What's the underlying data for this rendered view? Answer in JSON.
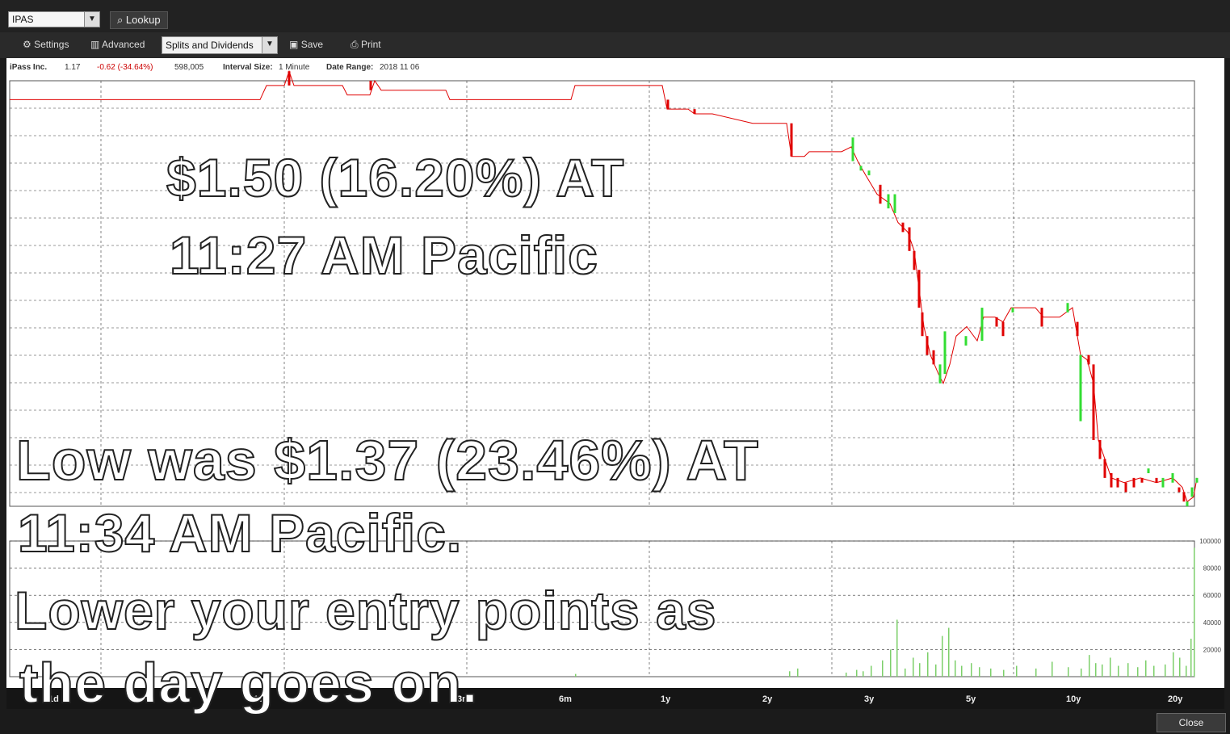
{
  "toolbar": {
    "symbol_value": "IPAS",
    "lookup_label": "Lookup",
    "settings_label": "Settings",
    "advanced_label": "Advanced",
    "splits_select_value": "Splits and Dividends",
    "save_label": "Save",
    "print_label": "Print"
  },
  "info_bar": {
    "company": "iPass Inc.",
    "last": "1.17",
    "change": "-0.62 (-34.64%)",
    "volume": "598,005",
    "interval_label": "Interval Size:",
    "interval_value": "1 Minute",
    "date_label": "Date Range:",
    "date_value": "2018 11 06"
  },
  "timeframes": [
    "1d",
    "10d",
    "3m",
    "6m",
    "1y",
    "2y",
    "3y",
    "5y",
    "10y",
    "20y"
  ],
  "close_label": "Close",
  "overlay": {
    "line1": "$1.50 (16.20%) AT",
    "line2": "11:27 AM Pacific",
    "line3": "Low was $1.37 (23.46%) AT",
    "line4": "11:34 AM Pacific.",
    "line5": "Lower your entry points as",
    "line6": "the day goes on."
  },
  "colors": {
    "up": "#33dd33",
    "down": "#e00000",
    "volume": "#7ccf6a",
    "grid": "#333333"
  },
  "chart_data": {
    "type": "candlestick",
    "price_ylim": [
      1.37,
      1.82
    ],
    "volume_ylim": [
      0,
      100000
    ],
    "y_tick_labels": [
      "20000",
      "40000",
      "60000",
      "80000",
      "100000"
    ],
    "price_path": [
      [
        0,
        1.8
      ],
      [
        310,
        1.8
      ],
      [
        318,
        1.815
      ],
      [
        340,
        1.815
      ],
      [
        346,
        1.83
      ],
      [
        352,
        1.815
      ],
      [
        412,
        1.815
      ],
      [
        418,
        1.805
      ],
      [
        446,
        1.805
      ],
      [
        452,
        1.82
      ],
      [
        460,
        1.81
      ],
      [
        540,
        1.81
      ],
      [
        545,
        1.8
      ],
      [
        695,
        1.8
      ],
      [
        700,
        1.815
      ],
      [
        808,
        1.815
      ],
      [
        814,
        1.79
      ],
      [
        840,
        1.79
      ],
      [
        848,
        1.785
      ],
      [
        870,
        1.785
      ],
      [
        920,
        1.775
      ],
      [
        962,
        1.775
      ],
      [
        968,
        1.74
      ],
      [
        984,
        1.74
      ],
      [
        990,
        1.745
      ],
      [
        1030,
        1.745
      ],
      [
        1042,
        1.75
      ],
      [
        1050,
        1.735
      ],
      [
        1060,
        1.72
      ],
      [
        1074,
        1.7
      ],
      [
        1090,
        1.69
      ],
      [
        1100,
        1.67
      ],
      [
        1112,
        1.66
      ],
      [
        1120,
        1.64
      ],
      [
        1126,
        1.6
      ],
      [
        1132,
        1.56
      ],
      [
        1140,
        1.53
      ],
      [
        1150,
        1.51
      ],
      [
        1156,
        1.5
      ],
      [
        1164,
        1.52
      ],
      [
        1172,
        1.55
      ],
      [
        1185,
        1.56
      ],
      [
        1198,
        1.545
      ],
      [
        1206,
        1.57
      ],
      [
        1220,
        1.57
      ],
      [
        1230,
        1.565
      ],
      [
        1240,
        1.58
      ],
      [
        1270,
        1.58
      ],
      [
        1280,
        1.57
      ],
      [
        1300,
        1.57
      ],
      [
        1316,
        1.58
      ],
      [
        1320,
        1.56
      ],
      [
        1326,
        1.53
      ],
      [
        1334,
        1.525
      ],
      [
        1342,
        1.5
      ],
      [
        1348,
        1.44
      ],
      [
        1356,
        1.42
      ],
      [
        1364,
        1.4
      ],
      [
        1380,
        1.395
      ],
      [
        1400,
        1.4
      ],
      [
        1420,
        1.395
      ],
      [
        1440,
        1.4
      ],
      [
        1452,
        1.39
      ],
      [
        1458,
        1.375
      ],
      [
        1466,
        1.38
      ],
      [
        1470,
        1.4
      ]
    ],
    "candles": [
      {
        "x": 346,
        "o": 1.83,
        "c": 1.815,
        "up": false
      },
      {
        "x": 447,
        "o": 1.82,
        "c": 1.81,
        "up": false
      },
      {
        "x": 815,
        "o": 1.8,
        "c": 1.79,
        "up": false
      },
      {
        "x": 848,
        "o": 1.79,
        "c": 1.785,
        "up": false
      },
      {
        "x": 968,
        "o": 1.775,
        "c": 1.74,
        "up": false
      },
      {
        "x": 1044,
        "o": 1.735,
        "c": 1.76,
        "up": true
      },
      {
        "x": 1054,
        "o": 1.73,
        "c": 1.725,
        "up": true
      },
      {
        "x": 1064,
        "o": 1.725,
        "c": 1.72,
        "up": true
      },
      {
        "x": 1078,
        "o": 1.71,
        "c": 1.69,
        "up": false
      },
      {
        "x": 1088,
        "o": 1.7,
        "c": 1.685,
        "up": true
      },
      {
        "x": 1096,
        "o": 1.68,
        "c": 1.7,
        "up": true
      },
      {
        "x": 1106,
        "o": 1.67,
        "c": 1.66,
        "up": false
      },
      {
        "x": 1114,
        "o": 1.665,
        "c": 1.64,
        "up": false
      },
      {
        "x": 1120,
        "o": 1.64,
        "c": 1.62,
        "up": false
      },
      {
        "x": 1126,
        "o": 1.62,
        "c": 1.58,
        "up": false
      },
      {
        "x": 1130,
        "o": 1.575,
        "c": 1.55,
        "up": false
      },
      {
        "x": 1136,
        "o": 1.55,
        "c": 1.53,
        "up": false
      },
      {
        "x": 1144,
        "o": 1.535,
        "c": 1.52,
        "up": false
      },
      {
        "x": 1152,
        "o": 1.52,
        "c": 1.5,
        "up": true
      },
      {
        "x": 1158,
        "o": 1.51,
        "c": 1.555,
        "up": true
      },
      {
        "x": 1184,
        "o": 1.54,
        "c": 1.55,
        "up": true
      },
      {
        "x": 1204,
        "o": 1.545,
        "c": 1.58,
        "up": true
      },
      {
        "x": 1222,
        "o": 1.57,
        "c": 1.56,
        "up": false
      },
      {
        "x": 1230,
        "o": 1.565,
        "c": 1.55,
        "up": false
      },
      {
        "x": 1242,
        "o": 1.575,
        "c": 1.58,
        "up": true
      },
      {
        "x": 1278,
        "o": 1.58,
        "c": 1.56,
        "up": false
      },
      {
        "x": 1310,
        "o": 1.575,
        "c": 1.585,
        "up": true
      },
      {
        "x": 1322,
        "o": 1.565,
        "c": 1.55,
        "up": false
      },
      {
        "x": 1326,
        "o": 1.53,
        "c": 1.46,
        "up": true
      },
      {
        "x": 1336,
        "o": 1.53,
        "c": 1.52,
        "up": false
      },
      {
        "x": 1342,
        "o": 1.52,
        "c": 1.44,
        "up": false
      },
      {
        "x": 1350,
        "o": 1.44,
        "c": 1.42,
        "up": false
      },
      {
        "x": 1356,
        "o": 1.42,
        "c": 1.4,
        "up": false
      },
      {
        "x": 1364,
        "o": 1.405,
        "c": 1.39,
        "up": false
      },
      {
        "x": 1372,
        "o": 1.4,
        "c": 1.39,
        "up": false
      },
      {
        "x": 1382,
        "o": 1.395,
        "c": 1.385,
        "up": false
      },
      {
        "x": 1392,
        "o": 1.4,
        "c": 1.39,
        "up": false
      },
      {
        "x": 1402,
        "o": 1.395,
        "c": 1.4,
        "up": false
      },
      {
        "x": 1410,
        "o": 1.405,
        "c": 1.41,
        "up": true
      },
      {
        "x": 1420,
        "o": 1.4,
        "c": 1.395,
        "up": false
      },
      {
        "x": 1428,
        "o": 1.4,
        "c": 1.39,
        "up": true
      },
      {
        "x": 1440,
        "o": 1.395,
        "c": 1.405,
        "up": true
      },
      {
        "x": 1448,
        "o": 1.39,
        "c": 1.385,
        "up": false
      },
      {
        "x": 1454,
        "o": 1.385,
        "c": 1.375,
        "up": false
      },
      {
        "x": 1458,
        "o": 1.375,
        "c": 1.37,
        "up": true
      },
      {
        "x": 1464,
        "o": 1.38,
        "c": 1.39,
        "up": true
      },
      {
        "x": 1470,
        "o": 1.395,
        "c": 1.4,
        "up": true
      }
    ],
    "volume_bars": [
      {
        "x": 700,
        "v": 2000
      },
      {
        "x": 965,
        "v": 4000
      },
      {
        "x": 975,
        "v": 6000
      },
      {
        "x": 1035,
        "v": 3000
      },
      {
        "x": 1048,
        "v": 5000
      },
      {
        "x": 1056,
        "v": 4000
      },
      {
        "x": 1066,
        "v": 8000
      },
      {
        "x": 1080,
        "v": 12000
      },
      {
        "x": 1090,
        "v": 20000
      },
      {
        "x": 1098,
        "v": 42000
      },
      {
        "x": 1108,
        "v": 6000
      },
      {
        "x": 1118,
        "v": 14000
      },
      {
        "x": 1126,
        "v": 10000
      },
      {
        "x": 1136,
        "v": 18000
      },
      {
        "x": 1146,
        "v": 9000
      },
      {
        "x": 1154,
        "v": 30000
      },
      {
        "x": 1162,
        "v": 36000
      },
      {
        "x": 1170,
        "v": 12000
      },
      {
        "x": 1178,
        "v": 8000
      },
      {
        "x": 1190,
        "v": 10000
      },
      {
        "x": 1200,
        "v": 7000
      },
      {
        "x": 1214,
        "v": 6000
      },
      {
        "x": 1230,
        "v": 5000
      },
      {
        "x": 1246,
        "v": 8000
      },
      {
        "x": 1270,
        "v": 6000
      },
      {
        "x": 1290,
        "v": 11000
      },
      {
        "x": 1310,
        "v": 7000
      },
      {
        "x": 1326,
        "v": 6000
      },
      {
        "x": 1336,
        "v": 16000
      },
      {
        "x": 1344,
        "v": 10000
      },
      {
        "x": 1352,
        "v": 9000
      },
      {
        "x": 1362,
        "v": 14000
      },
      {
        "x": 1372,
        "v": 8000
      },
      {
        "x": 1384,
        "v": 10000
      },
      {
        "x": 1396,
        "v": 7000
      },
      {
        "x": 1406,
        "v": 12000
      },
      {
        "x": 1416,
        "v": 8000
      },
      {
        "x": 1430,
        "v": 9000
      },
      {
        "x": 1440,
        "v": 18000
      },
      {
        "x": 1448,
        "v": 14000
      },
      {
        "x": 1456,
        "v": 8000
      },
      {
        "x": 1462,
        "v": 28000
      },
      {
        "x": 1466,
        "v": 95000
      }
    ]
  }
}
